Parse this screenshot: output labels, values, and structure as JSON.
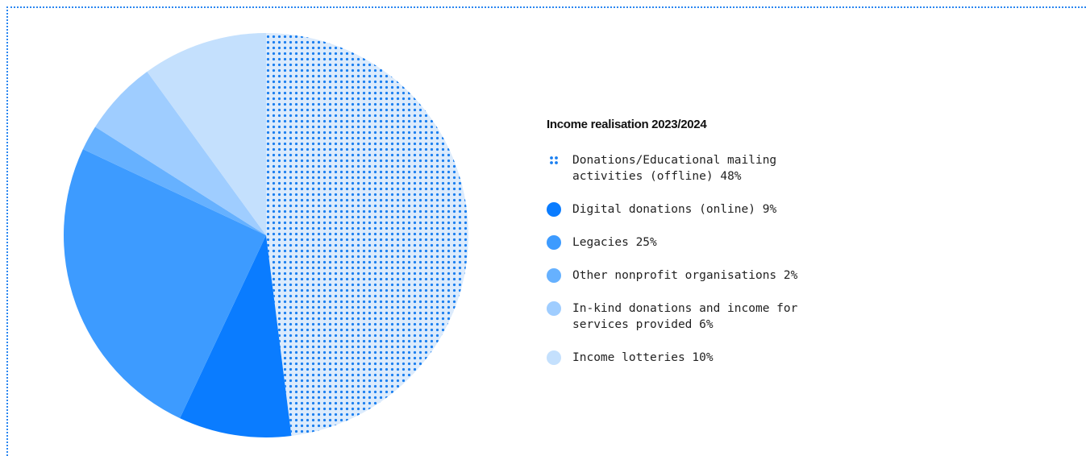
{
  "chart_data": {
    "type": "pie",
    "title": "Income realisation 2023/2024",
    "categories": [
      "Donations/Educational mailing activities (offline)",
      "Digital donations (online)",
      "Legacies",
      "Other nonprofit organisations",
      "In-kind donations and income for services provided",
      "Income lotteries"
    ],
    "values": [
      48,
      9,
      25,
      2,
      6,
      10
    ],
    "value_labels": [
      "48%",
      "9%",
      "25%",
      "2%",
      "6%",
      "10%"
    ],
    "colors": [
      "#1a7ff0",
      "#0a7cff",
      "#3d9bff",
      "#66b1ff",
      "#9fcdff",
      "#c4e0fd"
    ],
    "patterns": [
      "dots",
      "solid",
      "solid",
      "solid",
      "solid",
      "solid"
    ]
  }
}
